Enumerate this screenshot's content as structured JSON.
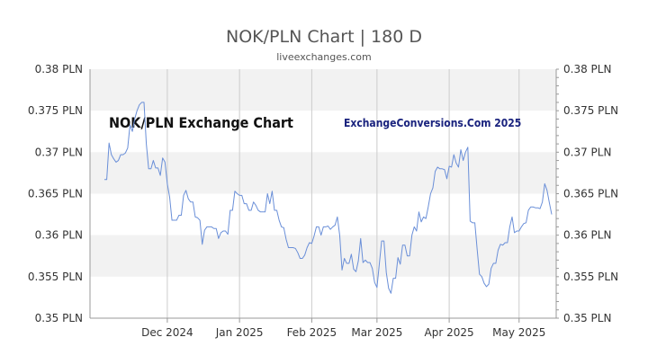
{
  "page": {
    "title": "NOK/PLN Chart | 180 D",
    "subtitle": "liveexchanges.com",
    "watermark_left": "NOK/PLN Exchange Chart",
    "watermark_right": "ExchangeConversions.Com 2025"
  },
  "colors": {
    "line": "#6a8fd8",
    "band": "#f2f2f2",
    "axis": "#999999",
    "watermark_left": "#111111",
    "watermark_right": "#1a237e"
  },
  "chart_data": {
    "type": "line",
    "title": "NOK/PLN Chart | 180 D",
    "xlabel": "",
    "ylabel": "",
    "ylim": [
      0.35,
      0.38
    ],
    "y_ticks": [
      "0.38 PLN",
      "0.375 PLN",
      "0.37 PLN",
      "0.365 PLN",
      "0.36 PLN",
      "0.355 PLN",
      "0.35 PLN"
    ],
    "y_tick_values": [
      0.38,
      0.375,
      0.37,
      0.365,
      0.36,
      0.355,
      0.35
    ],
    "x_ticks": [
      "Dec 2024",
      "Jan 2025",
      "Feb 2025",
      "Mar 2025",
      "Apr 2025",
      "May 2025"
    ],
    "x_tick_index": [
      27,
      58,
      89,
      117,
      148,
      178
    ],
    "grid": "vertical lines at month starts, alternating horizontal bands",
    "series": [
      {
        "values": [
          0.3667,
          0.3667,
          0.3711,
          0.3697,
          0.3692,
          0.3688,
          0.369,
          0.3697,
          0.3697,
          0.3699,
          0.3705,
          0.3733,
          0.3725,
          0.374,
          0.375,
          0.3757,
          0.376,
          0.376,
          0.371,
          0.368,
          0.368,
          0.369,
          0.3681,
          0.3681,
          0.3672,
          0.3693,
          0.3688,
          0.3662,
          0.3646,
          0.3618,
          0.3618,
          0.3618,
          0.3624,
          0.3624,
          0.3648,
          0.3654,
          0.3644,
          0.364,
          0.364,
          0.3622,
          0.3621,
          0.3618,
          0.3589,
          0.3606,
          0.361,
          0.361,
          0.361,
          0.3608,
          0.3608,
          0.3596,
          0.3603,
          0.3605,
          0.3605,
          0.3601,
          0.363,
          0.363,
          0.3653,
          0.365,
          0.3648,
          0.3648,
          0.3638,
          0.3638,
          0.363,
          0.363,
          0.364,
          0.3636,
          0.363,
          0.3628,
          0.3628,
          0.3628,
          0.365,
          0.3638,
          0.3653,
          0.363,
          0.363,
          0.3618,
          0.361,
          0.3609,
          0.3595,
          0.3585,
          0.3585,
          0.3585,
          0.3584,
          0.3579,
          0.3572,
          0.3572,
          0.3576,
          0.3585,
          0.3591,
          0.359,
          0.3599,
          0.361,
          0.361,
          0.36,
          0.361,
          0.361,
          0.3611,
          0.3607,
          0.361,
          0.3612,
          0.3622,
          0.36,
          0.3558,
          0.3572,
          0.3566,
          0.3566,
          0.3577,
          0.3559,
          0.3556,
          0.3569,
          0.3596,
          0.3567,
          0.357,
          0.3567,
          0.3567,
          0.356,
          0.3543,
          0.3537,
          0.3565,
          0.3593,
          0.3593,
          0.3555,
          0.3536,
          0.353,
          0.3548,
          0.3548,
          0.3573,
          0.3565,
          0.3588,
          0.3588,
          0.3575,
          0.3575,
          0.36,
          0.361,
          0.3605,
          0.3628,
          0.3616,
          0.3622,
          0.362,
          0.3634,
          0.365,
          0.3657,
          0.3677,
          0.3682,
          0.368,
          0.368,
          0.3679,
          0.3668,
          0.3683,
          0.3682,
          0.3697,
          0.3687,
          0.3682,
          0.3703,
          0.369,
          0.37,
          0.3706,
          0.3617,
          0.3615,
          0.3615,
          0.3583,
          0.3553,
          0.355,
          0.3542,
          0.3538,
          0.3541,
          0.356,
          0.3566,
          0.3566,
          0.3582,
          0.3589,
          0.3588,
          0.3591,
          0.3591,
          0.361,
          0.3622,
          0.3603,
          0.3605,
          0.3605,
          0.361,
          0.3614,
          0.3615,
          0.363,
          0.3634,
          0.3634,
          0.3633,
          0.3633,
          0.3632,
          0.364,
          0.3662,
          0.3654,
          0.3639,
          0.3625
        ]
      }
    ]
  }
}
